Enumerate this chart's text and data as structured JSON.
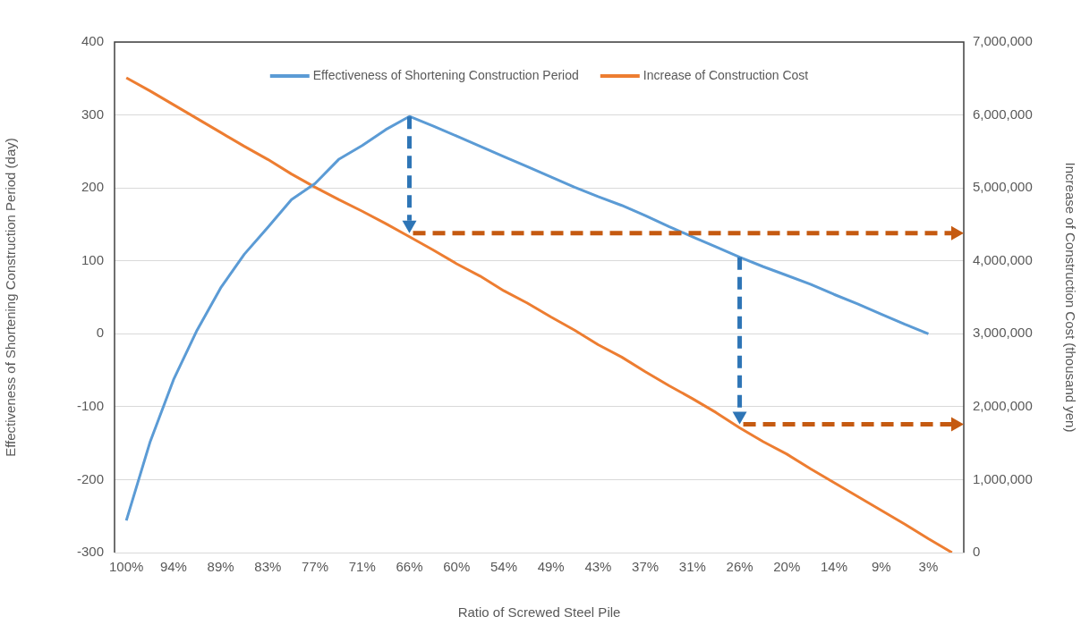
{
  "chart_data": {
    "type": "line",
    "xlabel": "Ratio of Screwed Steel Pile",
    "ylabel": "Effectiveness of Shortening Construction Period (day)",
    "y2label": "Increase of Construction Cost (thousand yen)",
    "categories": [
      "100%",
      null,
      "94%",
      null,
      "89%",
      null,
      "83%",
      null,
      "77%",
      null,
      "71%",
      null,
      "66%",
      null,
      "60%",
      null,
      "54%",
      null,
      "49%",
      null,
      "43%",
      null,
      "37%",
      null,
      "31%",
      null,
      "26%",
      null,
      "20%",
      null,
      "14%",
      null,
      "9%",
      null,
      "3%",
      null
    ],
    "series": [
      {
        "name": "Effectiveness of Shortening Construction Period",
        "color": "#5b9bd5",
        "values": [
          -256,
          -149,
          -63,
          5,
          63,
          109,
          146,
          184,
          206,
          239,
          258,
          280,
          298,
          285,
          271,
          257,
          243,
          229,
          215,
          201,
          188,
          176,
          162,
          147,
          133,
          119,
          105,
          92,
          80,
          68,
          54,
          41,
          27,
          13,
          0,
          null
        ]
      },
      {
        "name": "Increase of Construction Cost",
        "color": "#ed7d31",
        "axis": "y2",
        "values": [
          6510000,
          6330000,
          6140000,
          5950000,
          5760000,
          5570000,
          5390000,
          5190000,
          5010000,
          4840000,
          4680000,
          4510000,
          4330000,
          4150000,
          3960000,
          3790000,
          3590000,
          3420000,
          3230000,
          3050000,
          2850000,
          2680000,
          2480000,
          2290000,
          2110000,
          1920000,
          1710000,
          1520000,
          1350000,
          1150000,
          960000,
          770000,
          580000,
          390000,
          190000,
          0
        ]
      }
    ],
    "ylim": [
      -300,
      400
    ],
    "yticks": [
      -300,
      -200,
      -100,
      0,
      100,
      200,
      300,
      400
    ],
    "y2lim": [
      0,
      7000000
    ],
    "y2ticks": [
      0,
      {
        "value": 1000000,
        "label": "1,000,000"
      },
      {
        "value": 2000000,
        "label": "2,000,000"
      },
      {
        "value": 3000000,
        "label": "3,000,000"
      },
      {
        "value": 4000000,
        "label": "4,000,000"
      },
      {
        "value": 5000000,
        "label": "5,000,000"
      },
      {
        "value": 6000000,
        "label": "6,000,000"
      },
      {
        "value": 7000000,
        "label": "7,000,000"
      }
    ],
    "grid": "y",
    "legend": "top",
    "marker": "none",
    "line_style": "solid"
  }
}
